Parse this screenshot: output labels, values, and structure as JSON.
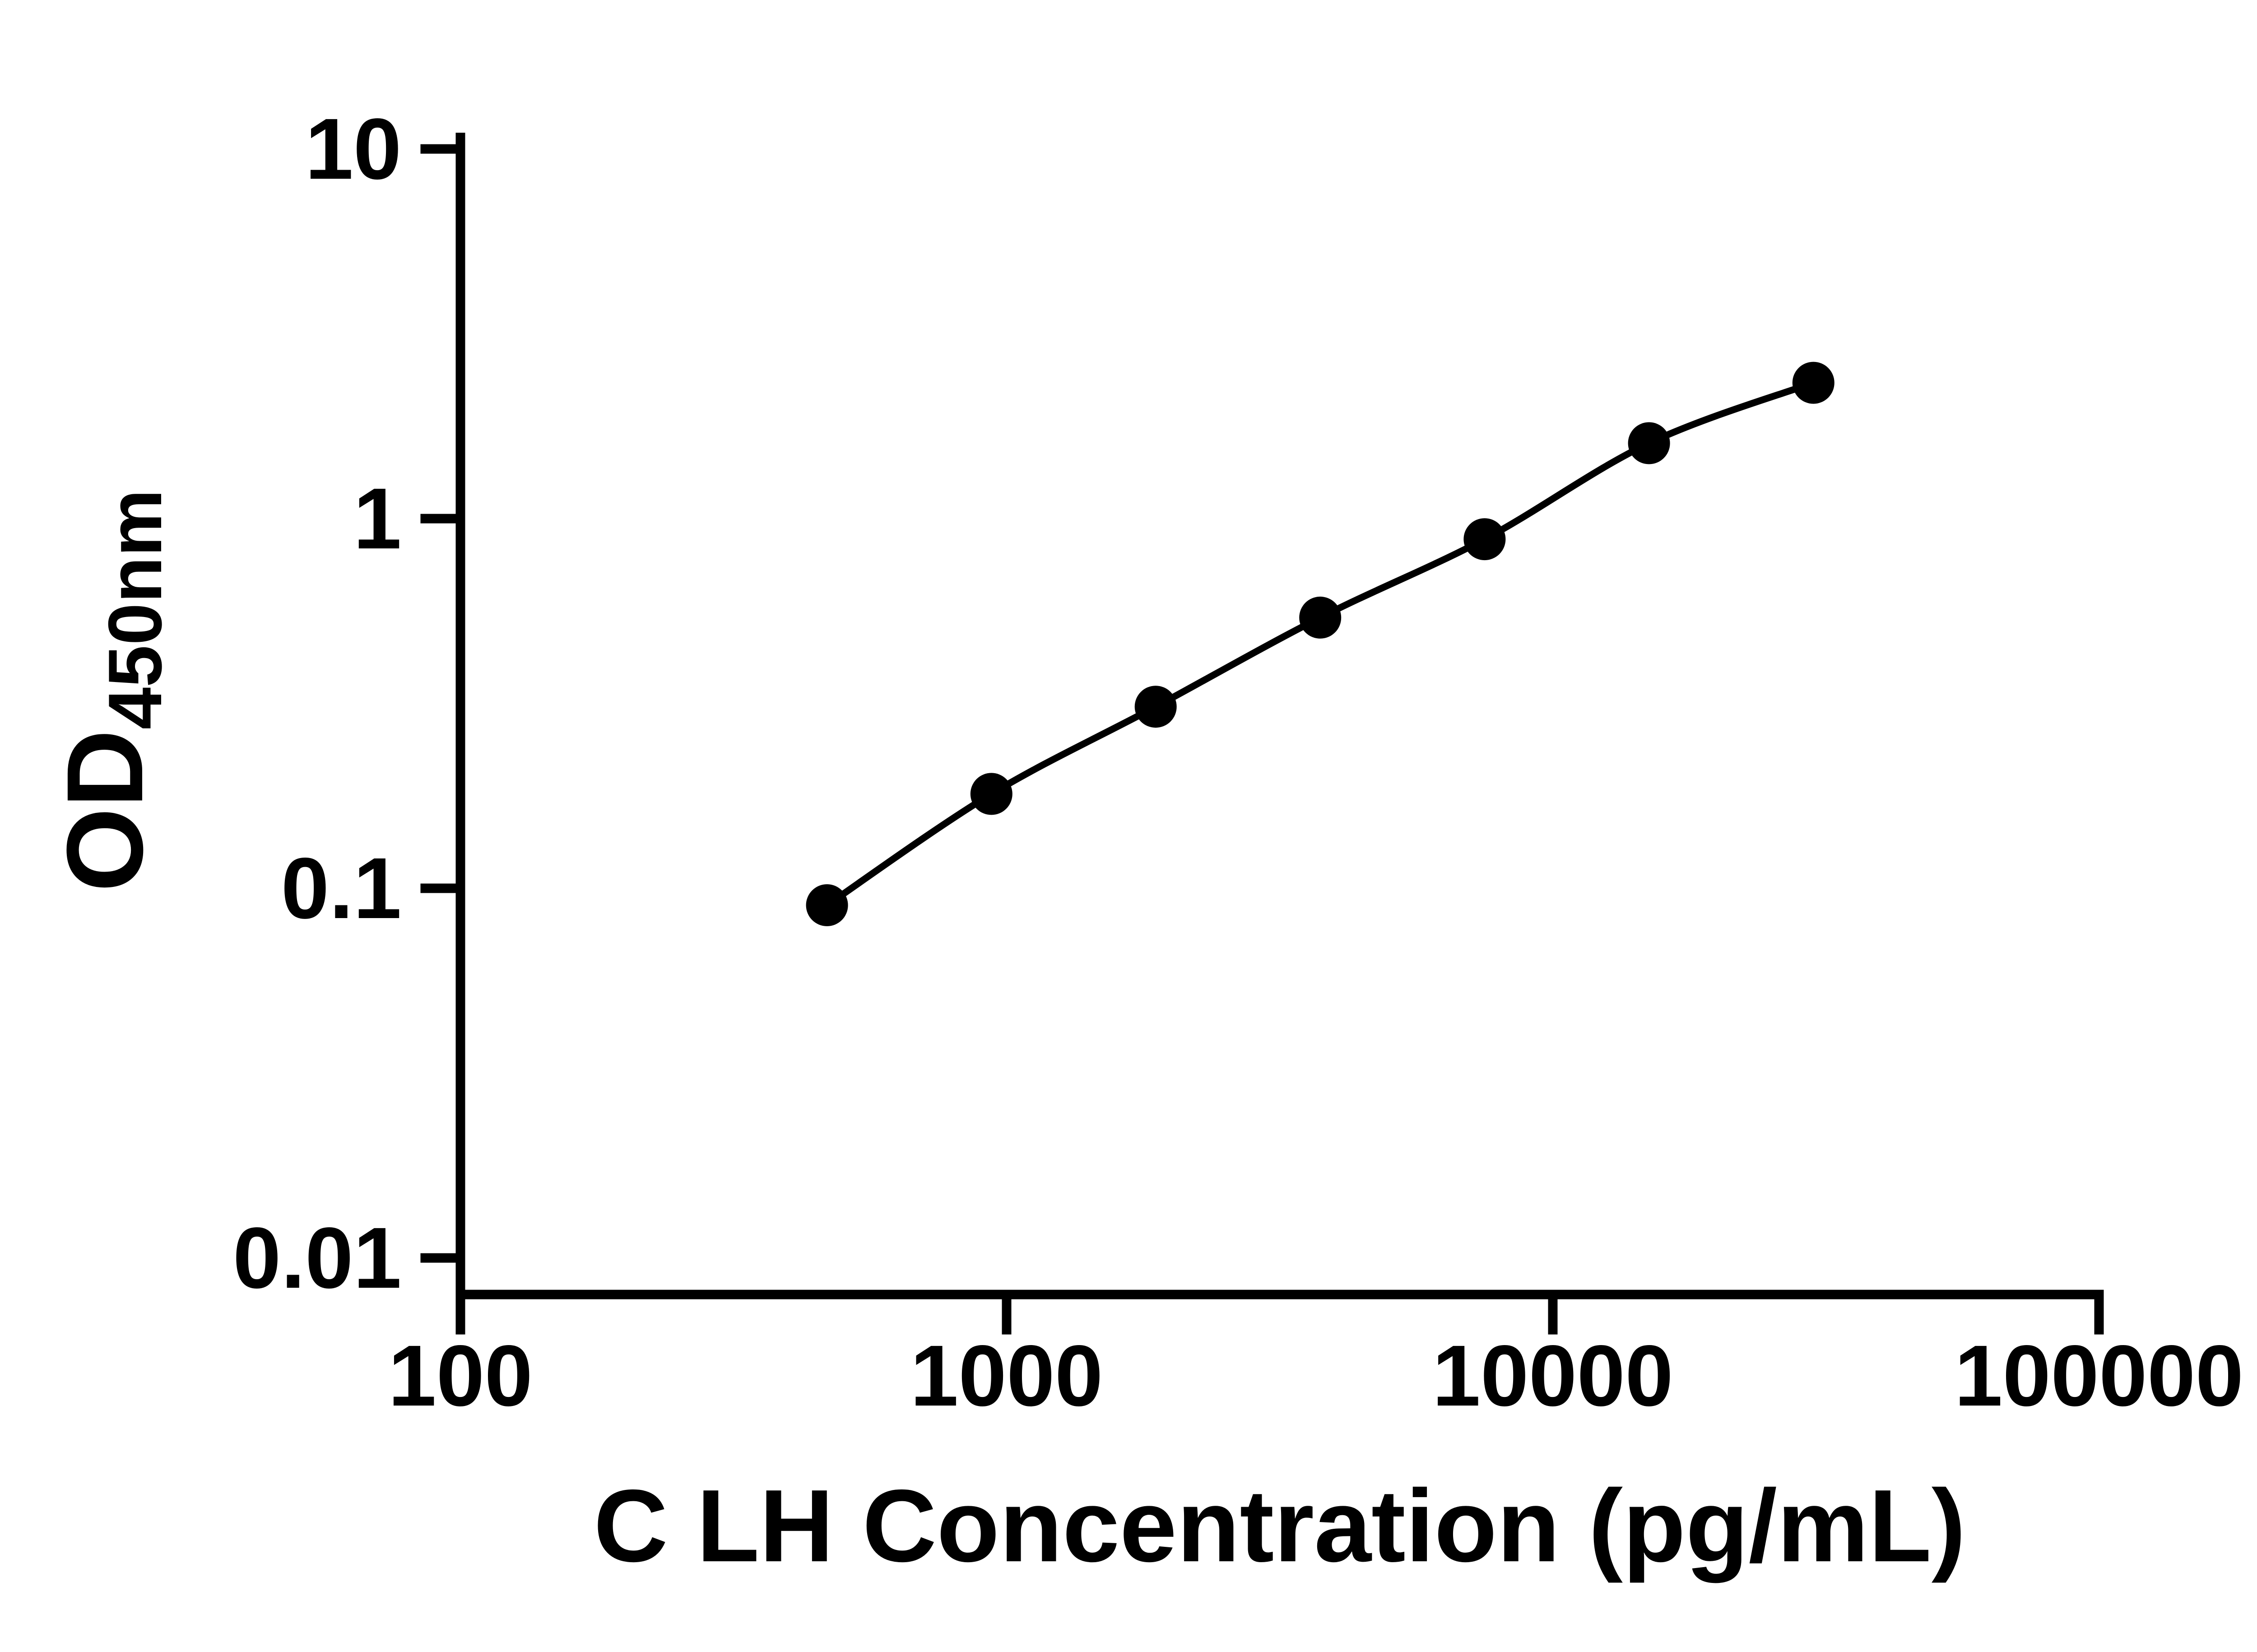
{
  "chart_data": {
    "type": "line",
    "title": "",
    "xlabel": "C LH Concentration (pg/mL)",
    "ylabel_main": "OD",
    "ylabel_sub": "450nm",
    "xscale": "log",
    "yscale": "log",
    "xlim": [
      100,
      100000
    ],
    "ylim": [
      0.01,
      10
    ],
    "grid": false,
    "legend": null,
    "x": [
      469,
      938,
      1875,
      3750,
      7500,
      15000,
      30000
    ],
    "y": [
      0.09,
      0.18,
      0.31,
      0.54,
      0.88,
      1.6,
      2.33
    ],
    "xticks": [
      {
        "value": 100,
        "label": "100"
      },
      {
        "value": 1000,
        "label": "1000"
      },
      {
        "value": 10000,
        "label": "10000"
      },
      {
        "value": 100000,
        "label": "100000"
      }
    ],
    "yticks": [
      {
        "value": 0.01,
        "label": "0.01"
      },
      {
        "value": 0.1,
        "label": "0.1"
      },
      {
        "value": 1,
        "label": "1"
      },
      {
        "value": 10,
        "label": "10"
      }
    ],
    "line_color": "#000000",
    "marker_color": "#000000",
    "background": "#ffffff"
  }
}
